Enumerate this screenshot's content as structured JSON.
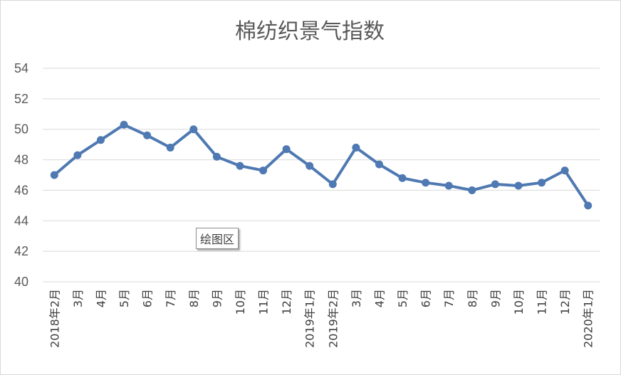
{
  "chart_data": {
    "type": "line",
    "title": "棉纺织景气指数",
    "categories": [
      "2018年2月",
      "3月",
      "4月",
      "5月",
      "6月",
      "7月",
      "8月",
      "9月",
      "10月",
      "11月",
      "12月",
      "2019年1月",
      "2019年2月",
      "3月",
      "4月",
      "5月",
      "6月",
      "7月",
      "8月",
      "9月",
      "10月",
      "11月",
      "12月",
      "2020年1月"
    ],
    "series": [
      {
        "values": [
          47.0,
          48.3,
          49.3,
          50.3,
          49.6,
          48.8,
          50.0,
          48.2,
          47.6,
          47.3,
          48.7,
          47.6,
          46.4,
          48.8,
          47.7,
          46.8,
          46.5,
          46.3,
          46.0,
          46.4,
          46.3,
          46.5,
          47.3,
          45.0
        ]
      }
    ],
    "ylim": [
      40,
      54
    ],
    "yticks": [
      40,
      42,
      44,
      46,
      48,
      50,
      52,
      54
    ],
    "grid": true,
    "line_color": "#4f79b2",
    "grid_color": "#d9d9d9"
  },
  "tooltip": "绘图区"
}
